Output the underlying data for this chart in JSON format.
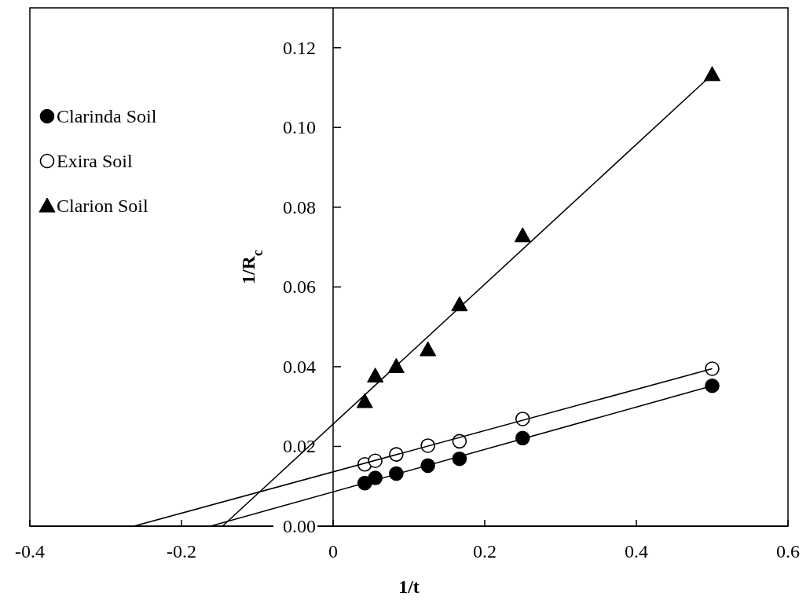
{
  "chart_data": {
    "type": "scatter",
    "xlabel": "1/t",
    "ylabel": "1/R$_{c}$",
    "xlim": [
      -0.4,
      0.6
    ],
    "ylim": [
      0,
      0.13
    ],
    "xticks": [
      -0.4,
      -0.2,
      0,
      0.2,
      0.4,
      0.6
    ],
    "yticks": [
      {
        "value": 0,
        "label": "0.00"
      },
      {
        "value": 0.02,
        "label": "0.02"
      },
      {
        "value": 0.04,
        "label": "0.04"
      },
      {
        "value": 0.06,
        "label": "0.06"
      },
      {
        "value": 0.08,
        "label": "0.08"
      },
      {
        "value": 0.1,
        "label": "0.10"
      },
      {
        "value": 0.12,
        "label": "0.12"
      }
    ],
    "grid": false,
    "legend": "top left",
    "series": [
      {
        "name": "Clarinda Soil",
        "marker": "circle",
        "color": "#000000",
        "x": [
          0.0417,
          0.0556,
          0.0833,
          0.125,
          0.1667,
          0.25,
          0.5
        ],
        "values": [
          0.0108,
          0.0121,
          0.0132,
          0.0152,
          0.0169,
          0.0221,
          0.0352
        ]
      },
      {
        "name": "Exira Soil",
        "marker": "circle",
        "color": "#ffffff",
        "x": [
          0.0417,
          0.0556,
          0.0833,
          0.125,
          0.1667,
          0.25,
          0.5
        ],
        "values": [
          0.0155,
          0.0164,
          0.018,
          0.0202,
          0.0213,
          0.0269,
          0.0395
        ]
      },
      {
        "name": "Clarion Soil",
        "marker": "triangle",
        "color": "#000000",
        "x": [
          0.0417,
          0.0556,
          0.0833,
          0.125,
          0.1667,
          0.25,
          0.5
        ],
        "values": [
          0.0313,
          0.0377,
          0.0401,
          0.0443,
          0.0556,
          0.0729,
          0.1133
        ]
      },
      {
        "type": "line",
        "color": "#000000",
        "x": [
          -0.162,
          0.5
        ],
        "values": [
          0,
          0.0352
        ]
      },
      {
        "type": "line",
        "color": "#000000",
        "x": [
          -0.263,
          0.5
        ],
        "values": [
          0,
          0.0395
        ]
      },
      {
        "type": "line",
        "color": "#000000",
        "x": [
          -0.146,
          0.5
        ],
        "values": [
          0,
          0.1133
        ]
      }
    ]
  }
}
